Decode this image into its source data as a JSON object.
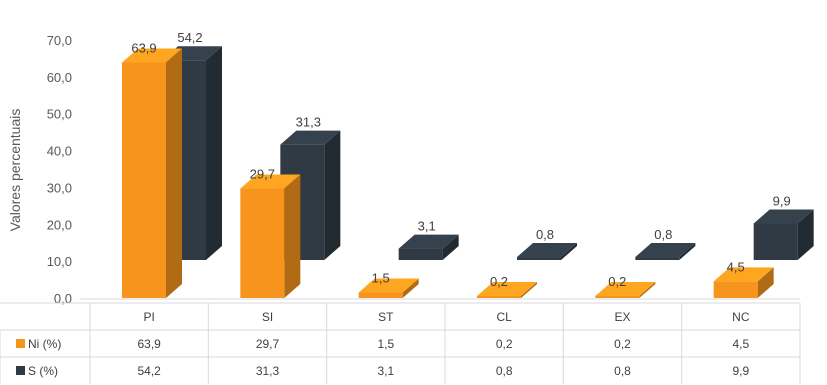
{
  "chart_data": {
    "type": "bar",
    "style": "3d-clustered-column-with-data-table",
    "ylabel": "Valores percentuais",
    "ylim": [
      0,
      70
    ],
    "yticks": [
      "0,0",
      "10,0",
      "20,0",
      "30,0",
      "40,0",
      "50,0",
      "60,0",
      "70,0"
    ],
    "categories": [
      "PI",
      "SI",
      "ST",
      "CL",
      "EX",
      "NC"
    ],
    "series": [
      {
        "name": "Ni (%)",
        "color": "#f7941d",
        "values": [
          63.9,
          29.7,
          1.5,
          0.2,
          0.2,
          4.5
        ],
        "labels": [
          "63,9",
          "29,7",
          "1,5",
          "0,2",
          "0,2",
          "4,5"
        ]
      },
      {
        "name": "S (%)",
        "color": "#2f3a45",
        "values": [
          54.2,
          31.3,
          3.1,
          0.8,
          0.8,
          9.9
        ],
        "labels": [
          "54,2",
          "31,3",
          "3,1",
          "0,8",
          "0,8",
          "9,9"
        ]
      }
    ],
    "grid": false,
    "legend": "data-table"
  }
}
